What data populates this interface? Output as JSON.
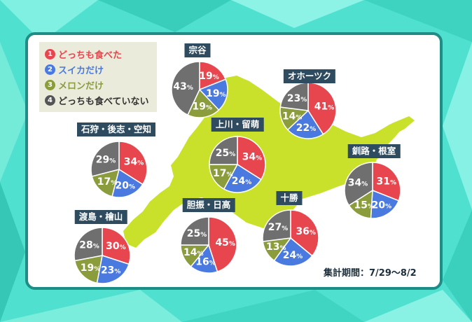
{
  "colors": {
    "both": "#e8464f",
    "watermelon": "#4a79e0",
    "melon": "#8a9c3c",
    "neither": "#6f6f6f",
    "hokkaido": "#c9e12a",
    "label_bg": "#2e4b60",
    "frame": "#1e8d86"
  },
  "legend": {
    "items": [
      {
        "num": "1",
        "label": "どっちも食べた",
        "color": "#e8464f"
      },
      {
        "num": "2",
        "label": "スイカだけ",
        "color": "#4a79e0"
      },
      {
        "num": "3",
        "label": "メロンだけ",
        "color": "#8a9c3c"
      },
      {
        "num": "4",
        "label": "どっちも食べていない",
        "color": "#555555"
      }
    ]
  },
  "period": "集計期間：7/29～8/2",
  "chart_data": {
    "type": "pie",
    "series_names": [
      "どっちも食べた",
      "スイカだけ",
      "メロンだけ",
      "どっちも食べていない"
    ],
    "unit": "%",
    "regions": [
      {
        "name": "宗谷",
        "values": [
          19,
          19,
          19,
          43
        ]
      },
      {
        "name": "オホーツク",
        "values": [
          41,
          22,
          14,
          23
        ]
      },
      {
        "name": "上川・留萌",
        "values": [
          34,
          24,
          17,
          25
        ]
      },
      {
        "name": "石狩・後志・空知",
        "values": [
          34,
          20,
          17,
          29
        ]
      },
      {
        "name": "釧路・根室",
        "values": [
          31,
          20,
          15,
          34
        ]
      },
      {
        "name": "十勝",
        "values": [
          36,
          24,
          13,
          27
        ]
      },
      {
        "name": "胆振・日高",
        "values": [
          45,
          16,
          14,
          25
        ]
      },
      {
        "name": "渡島・檜山",
        "values": [
          30,
          23,
          19,
          28
        ]
      }
    ]
  }
}
